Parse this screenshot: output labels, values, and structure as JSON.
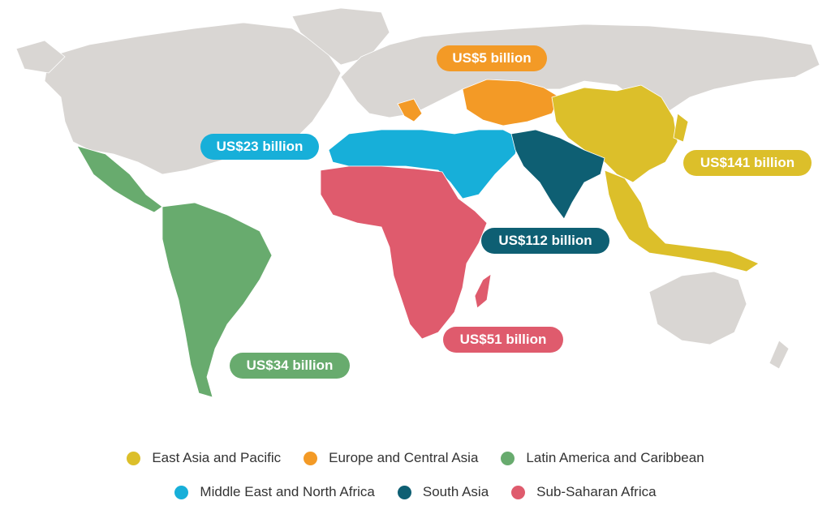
{
  "colors": {
    "land": "#d9d6d3",
    "east_asia_pacific": "#dcbf2a",
    "europe_central_asia": "#f39a26",
    "latin_america_caribbean": "#68ab6e",
    "middle_east_north_africa": "#17afd9",
    "south_asia": "#0e5f73",
    "sub_saharan_africa": "#df5b6d"
  },
  "labels": {
    "europe_central_asia": "US$5 billion",
    "middle_east_north_africa": "US$23 billion",
    "east_asia_pacific": "US$141 billion",
    "south_asia": "US$112 billion",
    "sub_saharan_africa": "US$51 billion",
    "latin_america_caribbean": "US$34 billion"
  },
  "legend": {
    "row1": [
      {
        "key": "east_asia_pacific",
        "label": "East Asia and Pacific"
      },
      {
        "key": "europe_central_asia",
        "label": "Europe and Central Asia"
      },
      {
        "key": "latin_america_caribbean",
        "label": "Latin America and Caribbean"
      }
    ],
    "row2": [
      {
        "key": "middle_east_north_africa",
        "label": "Middle East and North Africa"
      },
      {
        "key": "south_asia",
        "label": "South Asia"
      },
      {
        "key": "sub_saharan_africa",
        "label": "Sub-Saharan Africa"
      }
    ]
  }
}
